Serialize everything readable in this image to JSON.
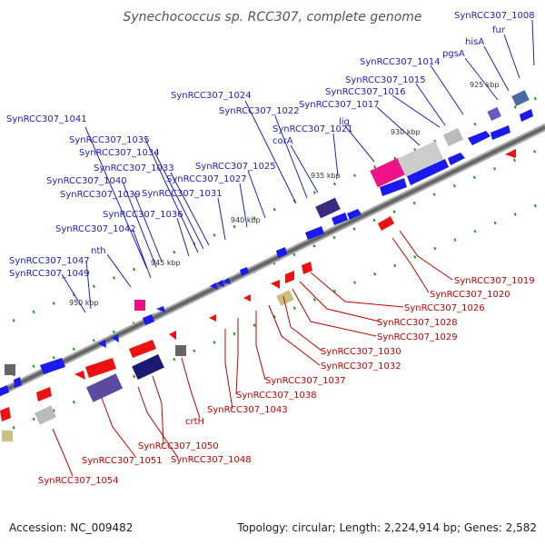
{
  "title": "Synechococcus sp. RCC307, complete genome",
  "footer": {
    "accession": "Accession: NC_009482",
    "summary": "Topology: circular; Length: 2,224,914 bp; Genes: 2,582"
  },
  "colors": {
    "forward": "#1a1aee",
    "reverse": "#ee1111",
    "backbone": "#888888",
    "blue_label": "#2020c0",
    "red_label": "#c00000"
  },
  "ticks": [
    "925 kbp",
    "930 kbp",
    "935 kbp",
    "940 kbp",
    "945 kbp",
    "950 kbp"
  ],
  "upper_labels": [
    "SynRCC307_1008",
    "fur",
    "hisA",
    "pgsA",
    "SynRCC307_1014",
    "SynRCC307_1015",
    "SynRCC307_1016",
    "SynRCC307_1017",
    "lig",
    "SynRCC307_1021",
    "corA",
    "SynRCC307_1022",
    "SynRCC307_1024",
    "SynRCC307_1025",
    "SynRCC307_1027",
    "SynRCC307_1031",
    "SynRCC307_1033",
    "SynRCC307_1034",
    "SynRCC307_1035",
    "SynRCC307_1036",
    "SynRCC307_1039",
    "SynRCC307_1040",
    "SynRCC307_1041",
    "SynRCC307_1042",
    "nth",
    "SynRCC307_1047",
    "SynRCC307_1049"
  ],
  "lower_labels": [
    "SynRCC307_1019",
    "SynRCC307_1020",
    "SynRCC307_1026",
    "SynRCC307_1028",
    "SynRCC307_1029",
    "SynRCC307_1030",
    "SynRCC307_1032",
    "SynRCC307_1037",
    "SynRCC307_1038",
    "SynRCC307_1043",
    "crtH",
    "SynRCC307_1050",
    "SynRCC307_1048",
    "SynRCC307_1051",
    "SynRCC307_1054"
  ]
}
